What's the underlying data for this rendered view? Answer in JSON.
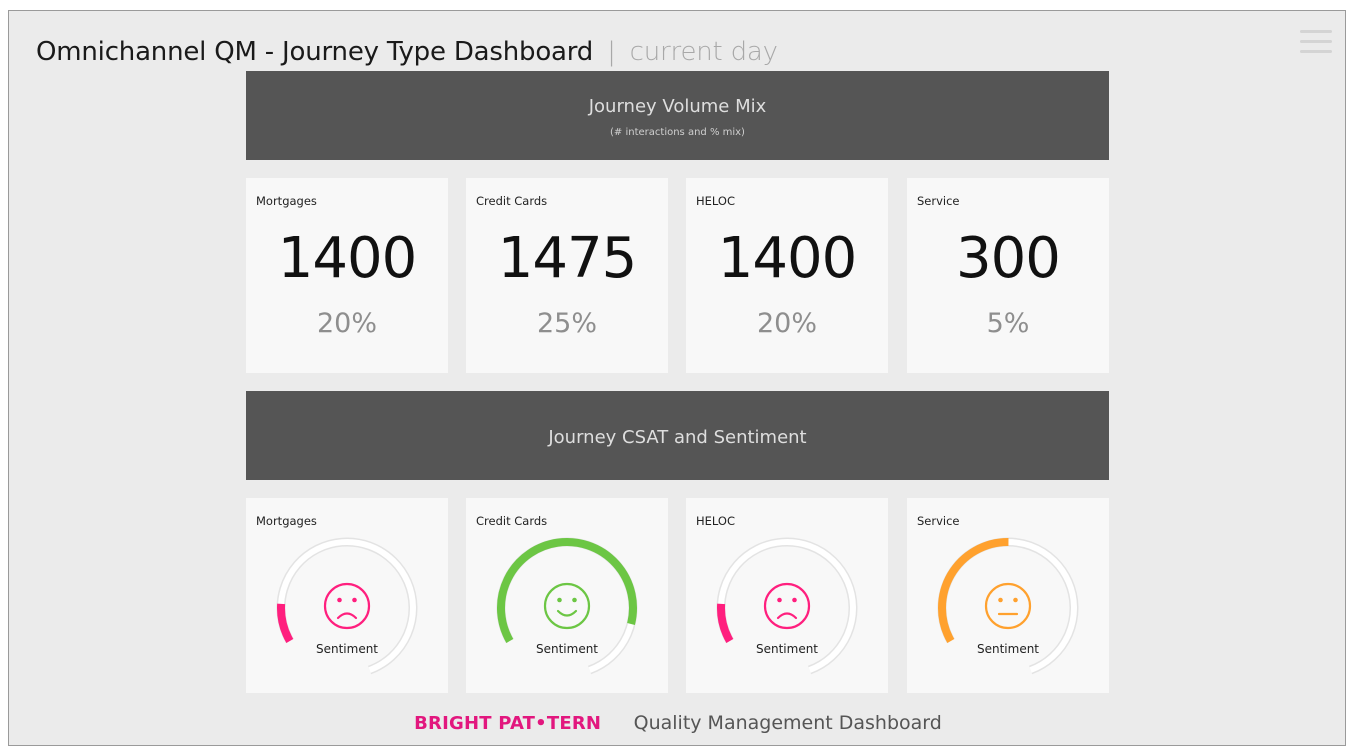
{
  "header": {
    "title": "Omnichannel QM - Journey Type Dashboard",
    "separator": "|",
    "subtitle": "current day",
    "menu_icon": "hamburger-menu-icon"
  },
  "volume_section": {
    "title": "Journey Volume Mix",
    "subtitle": "(# interactions and % mix)",
    "cards": [
      {
        "label": "Mortgages",
        "count": "1400",
        "percent": "20%"
      },
      {
        "label": "Credit Cards",
        "count": "1475",
        "percent": "25%"
      },
      {
        "label": "HELOC",
        "count": "1400",
        "percent": "20%"
      },
      {
        "label": "Service",
        "count": "300",
        "percent": "5%"
      }
    ]
  },
  "csat_section": {
    "title": "Journey CSAT and Sentiment",
    "cards": [
      {
        "label": "Mortgages",
        "sentiment_label": "Sentiment",
        "face": "sad-face-icon",
        "gauge_fraction": 0.12,
        "color": "#ff1f7e"
      },
      {
        "label": "Credit Cards",
        "sentiment_label": "Sentiment",
        "face": "happy-face-icon",
        "gauge_fraction": 0.8,
        "color": "#6cc644"
      },
      {
        "label": "HELOC",
        "sentiment_label": "Sentiment",
        "face": "sad-face-icon",
        "gauge_fraction": 0.12,
        "color": "#ff1f7e"
      },
      {
        "label": "Service",
        "sentiment_label": "Sentiment",
        "face": "neutral-face-icon",
        "gauge_fraction": 0.43,
        "color": "#ffa12e"
      }
    ]
  },
  "footer": {
    "brand": "BRIGHT PAT•TERN",
    "text": "Quality Management Dashboard"
  },
  "colors": {
    "banner": "#555555",
    "background": "#ebebeb",
    "card": "#f8f8f8",
    "brand": "#e2177e",
    "track": "#e6e6e6"
  }
}
